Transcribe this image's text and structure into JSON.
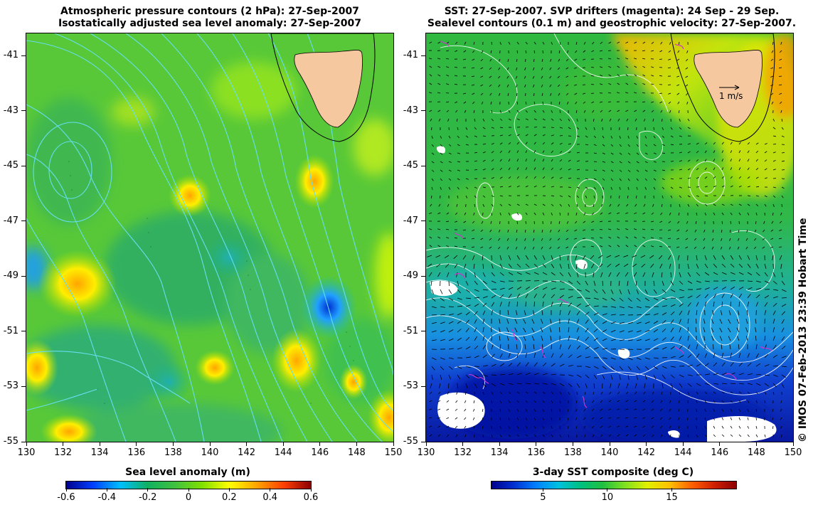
{
  "left_panel": {
    "title_line1": "Atmospheric pressure contours (2 hPa): 27-Sep-2007",
    "title_line2": "Isostatically adjusted sea level anomaly: 27-Sep-2007",
    "x_ticks": [
      "130",
      "132",
      "134",
      "136",
      "138",
      "140",
      "142",
      "144",
      "146",
      "148",
      "150"
    ],
    "y_ticks": [
      "-41",
      "-43",
      "-45",
      "-47",
      "-49",
      "-51",
      "-53",
      "-55"
    ],
    "colorbar": {
      "title": "Sea level anomaly (m)",
      "ticks": [
        "-0.6",
        "-0.4",
        "-0.2",
        "0",
        "0.2",
        "0.4",
        "0.6"
      ],
      "range": [
        -0.6,
        0.6
      ],
      "colors": [
        "#00008b",
        "#0040ff",
        "#00bfff",
        "#10b060",
        "#40c040",
        "#80e000",
        "#ffff00",
        "#ffa500",
        "#ff4000",
        "#8b0000"
      ]
    },
    "contour_color": "#66ddee",
    "land_color": "#f5c8a0"
  },
  "right_panel": {
    "title_line1": "SST: 27-Sep-2007. SVP drifters (magenta): 24 Sep - 29 Sep.",
    "title_line2": "Sealevel contours (0.1 m) and geostrophic velocity: 27-Sep-2007.",
    "x_ticks": [
      "130",
      "132",
      "134",
      "136",
      "138",
      "140",
      "142",
      "144",
      "146",
      "148",
      "150"
    ],
    "y_ticks": [
      "-41",
      "-43",
      "-45",
      "-47",
      "-49",
      "-51",
      "-53",
      "-55"
    ],
    "velocity_scale_label": "1 m/s",
    "colorbar": {
      "title": "3-day SST composite (deg C)",
      "ticks": [
        "5",
        "10",
        "15"
      ],
      "range": [
        1,
        20
      ],
      "colors": [
        "#00008b",
        "#0030d0",
        "#0080ff",
        "#00c0e0",
        "#00c080",
        "#20c040",
        "#80e020",
        "#e0f000",
        "#ffc000",
        "#ff6000",
        "#d02000",
        "#8b0000"
      ]
    },
    "drifter_color": "#cc33cc",
    "land_color": "#f5c8a0"
  },
  "map_extent": {
    "lon": [
      130,
      150
    ],
    "lat": [
      -55,
      -40.2
    ]
  },
  "credit": "© IMOS 07-Feb-2013 23:39 Hobart Time"
}
